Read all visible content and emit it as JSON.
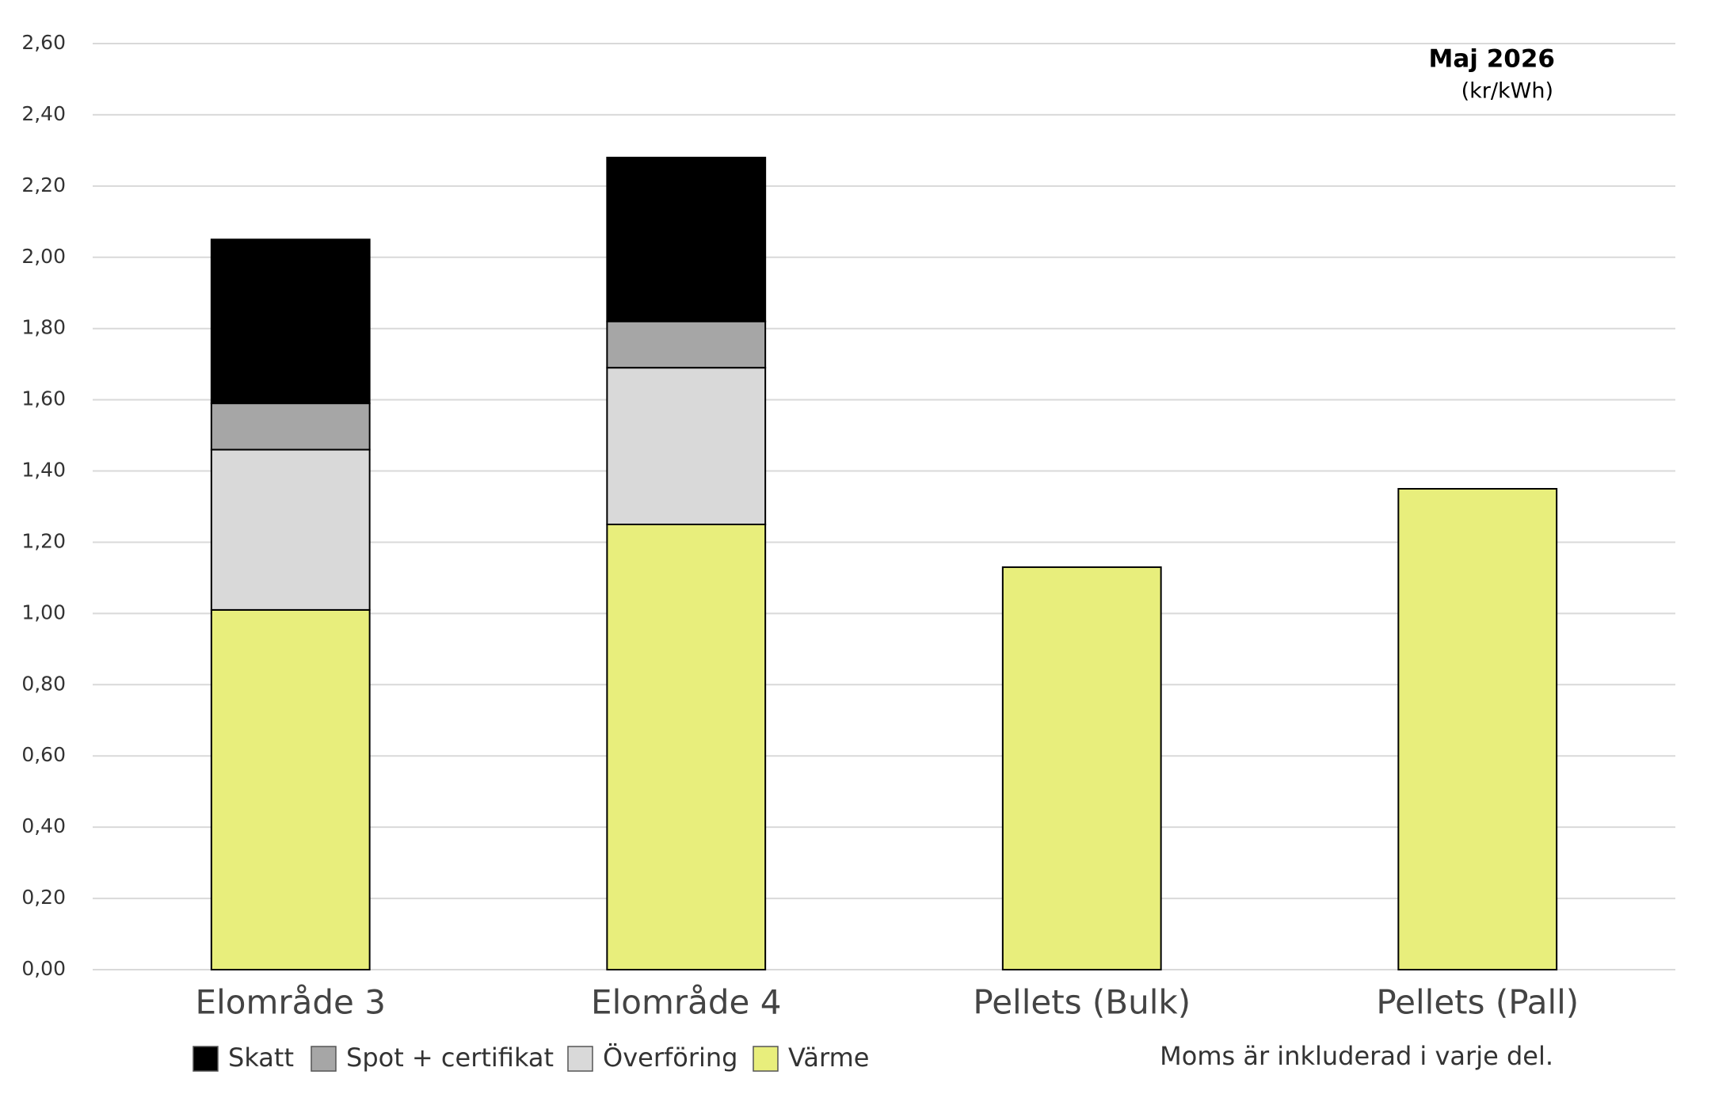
{
  "chart_data": {
    "type": "stacked_bar",
    "title": "Maj 2026",
    "subtitle": "(kr/kWh)",
    "note": "Moms är inkluderad i varje del.",
    "categories": [
      "Elområde 3",
      "Elområde 4",
      "Pellets (Bulk)",
      "Pellets (Pall)"
    ],
    "series": [
      {
        "name": "Skatt",
        "color": "#000000",
        "values": [
          0.46,
          0.46,
          null,
          null
        ]
      },
      {
        "name": "Spot + certifikat",
        "color": "#a6a6a6",
        "values": [
          0.13,
          0.13,
          null,
          null
        ]
      },
      {
        "name": "Överföring",
        "color": "#d9d9d9",
        "values": [
          0.45,
          0.44,
          null,
          null
        ]
      },
      {
        "name": "Värme",
        "color": "#e8ee7c",
        "values": [
          1.01,
          1.25,
          1.13,
          1.35
        ]
      }
    ],
    "ylim": [
      0,
      2.6
    ],
    "yticks": [
      {
        "value": 0,
        "label": "0,00"
      },
      {
        "value": 0.2,
        "label": "0,20"
      },
      {
        "value": 0.4,
        "label": "0,40"
      },
      {
        "value": 0.6,
        "label": "0,60"
      },
      {
        "value": 0.8,
        "label": "0,80"
      },
      {
        "value": 1,
        "label": "1,00"
      },
      {
        "value": 1.2,
        "label": "1,20"
      },
      {
        "value": 1.4,
        "label": "1,40"
      },
      {
        "value": 1.6,
        "label": "1,60"
      },
      {
        "value": 1.8,
        "label": "1,80"
      },
      {
        "value": 2,
        "label": "2,00"
      },
      {
        "value": 2.2,
        "label": "2,20"
      },
      {
        "value": 2.4,
        "label": "2,40"
      },
      {
        "value": 2.6,
        "label": "2,60"
      }
    ],
    "grid": true
  }
}
